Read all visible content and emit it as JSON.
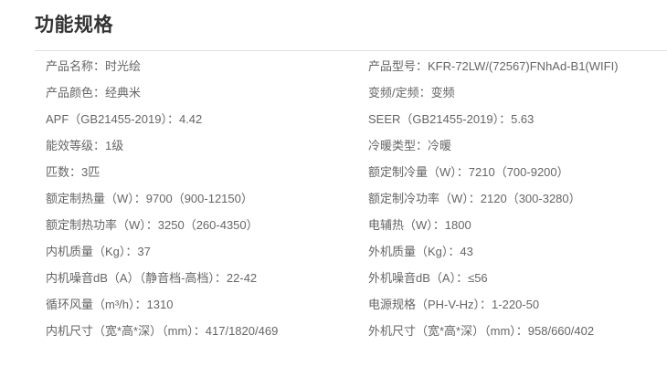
{
  "title": "功能规格",
  "colors": {
    "background": "#ffffff",
    "title_text": "#333333",
    "body_text": "#666666",
    "divider": "#e0e0e0"
  },
  "table": {
    "rows": [
      {
        "left": "产品名称：时光绘",
        "right": "产品型号：KFR-72LW/(72567)FNhAd-B1(WIFI)"
      },
      {
        "left": "产品颜色：经典米",
        "right": "变频/定频：变频"
      },
      {
        "left": "APF（GB21455-2019）：4.42",
        "right": "SEER（GB21455-2019）：5.63"
      },
      {
        "left": "能效等级：1级",
        "right": "冷暖类型：冷暖"
      },
      {
        "left": "匹数：3匹",
        "right": "额定制冷量（W）：7210（700-9200）"
      },
      {
        "left": "额定制热量（W）：9700（900-12150）",
        "right": "额定制冷功率（W）：2120（300-3280）"
      },
      {
        "left": "额定制热功率（W）：3250（260-4350）",
        "right": "电辅热（W）：1800"
      },
      {
        "left": "内机质量（Kg）：37",
        "right": "外机质量（Kg）：43"
      },
      {
        "left": "内机噪音dB（A）（静音档-高档）：22-42",
        "right": "外机噪音dB（A）：≤56"
      },
      {
        "left": "循环风量（m³/h）：1310",
        "right": "电源规格（PH-V-Hz）：1-220-50"
      },
      {
        "left": "内机尺寸（宽*高*深）（mm）：417/1820/469",
        "right": "外机尺寸（宽*高*深）（mm）：958/660/402"
      }
    ]
  }
}
